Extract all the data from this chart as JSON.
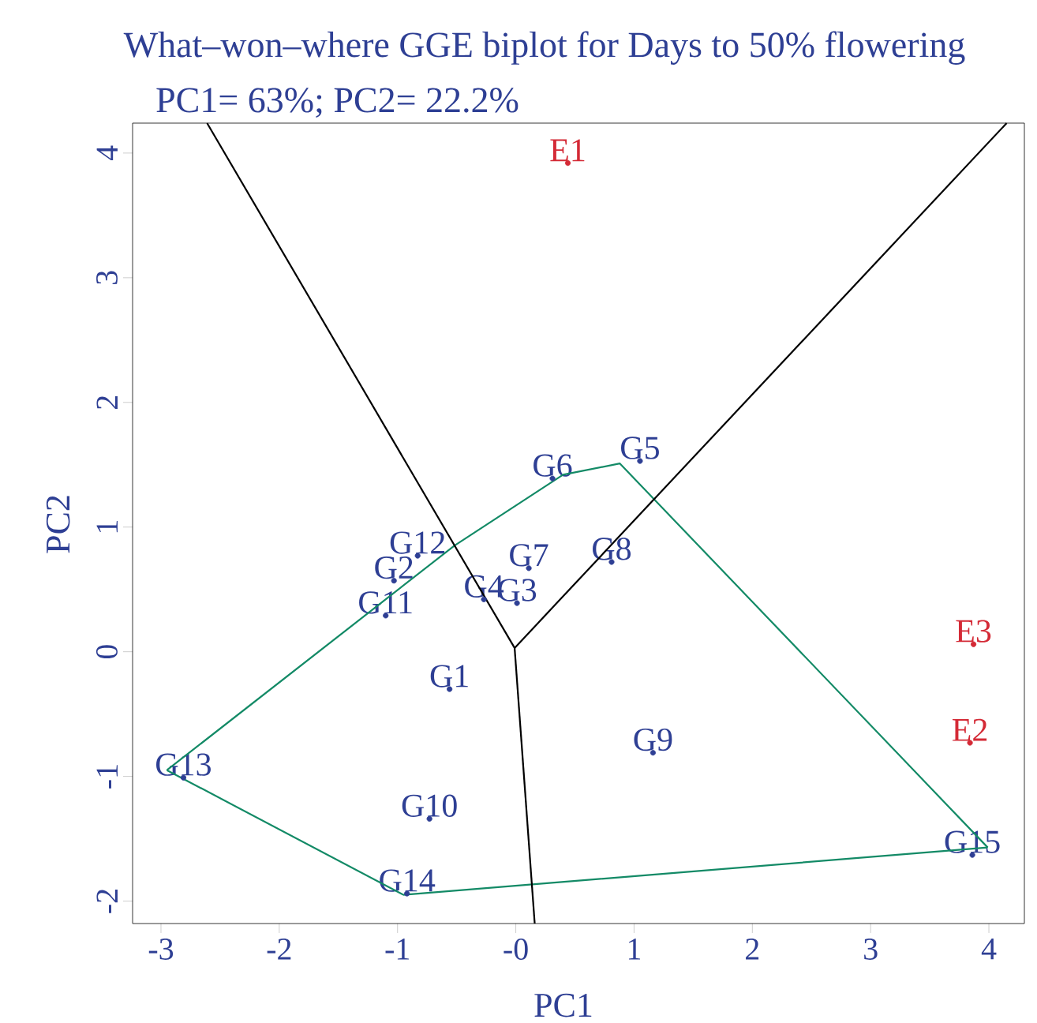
{
  "chart_data": {
    "type": "scatter",
    "title": "What–won–where GGE biplot for Days to 50% flowering",
    "subtitle": "PC1= 63%; PC2= 22.2%",
    "xlabel": "PC1",
    "ylabel": "PC2",
    "grid": false,
    "xlim": [
      -3.24,
      4.3
    ],
    "ylim": [
      -2.18,
      4.24
    ],
    "xticks": [
      -3,
      -2,
      -1,
      {
        "value": 0,
        "label": "-0"
      },
      1,
      2,
      3,
      4
    ],
    "yticks": [
      -2,
      -1,
      0,
      1,
      2,
      3,
      4
    ],
    "series": [
      {
        "type": "scatter",
        "marker": "circle",
        "color": "#2e3f94",
        "x": [
          -0.56,
          -1.03,
          0.01,
          -0.27,
          1.05,
          0.31,
          0.11,
          0.81,
          1.16,
          -0.73,
          -1.1,
          -0.83,
          -2.81,
          -0.92,
          3.86
        ],
        "values": [
          -0.3,
          0.57,
          0.39,
          0.42,
          1.53,
          1.39,
          0.67,
          0.72,
          -0.81,
          -1.34,
          0.29,
          0.77,
          -1.01,
          -1.94,
          -1.63
        ],
        "value_labels": [
          "G1",
          "G2",
          "G3",
          "G4",
          "G5",
          "G6",
          "G7",
          "G8",
          "G9",
          "G10",
          "G11",
          "G12",
          "G13",
          "G14",
          "G15"
        ]
      },
      {
        "type": "scatter",
        "marker": "circle",
        "color": "#d42a36",
        "x": [
          0.44,
          3.84,
          3.87
        ],
        "values": [
          3.92,
          -0.73,
          0.06
        ],
        "value_labels": [
          "E1",
          "E2",
          "E3"
        ]
      },
      {
        "type": "line",
        "color": "#138a66",
        "x": [
          -2.95,
          -0.52,
          0.4,
          0.88,
          3.99
        ],
        "values": [
          -0.95,
          0.85,
          1.42,
          1.51,
          -1.57
        ]
      },
      {
        "type": "line",
        "color": "#138a66",
        "x": [
          -2.95,
          -0.95,
          3.99
        ],
        "values": [
          -0.95,
          -1.95,
          -1.57
        ]
      },
      {
        "type": "line",
        "color": "#000000",
        "x": [
          -0.01,
          -2.61
        ],
        "values": [
          0.03,
          4.24
        ]
      },
      {
        "type": "line",
        "color": "#000000",
        "x": [
          -0.01,
          4.15
        ],
        "values": [
          0.03,
          4.24
        ]
      },
      {
        "type": "line",
        "color": "#000000",
        "x": [
          -0.01,
          0.16
        ],
        "values": [
          0.03,
          -2.18
        ]
      }
    ]
  }
}
